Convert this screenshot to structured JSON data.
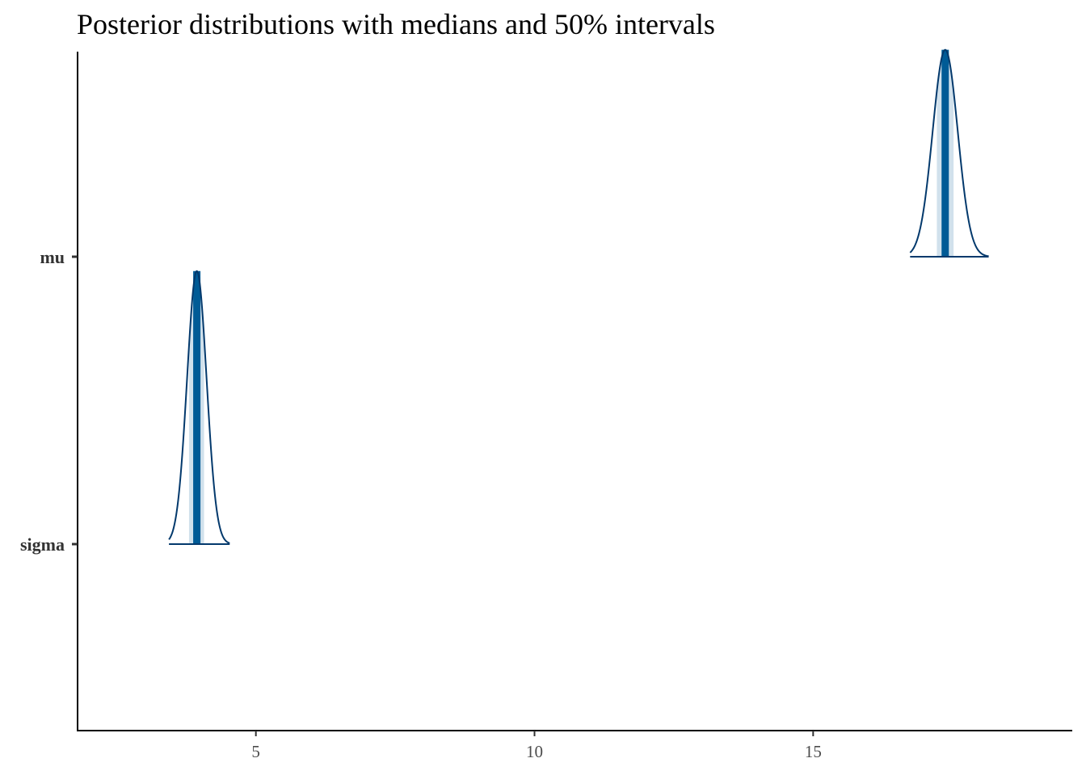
{
  "chart_data": {
    "type": "ridgeline-density",
    "title": "Posterior distributions with medians and 50% intervals",
    "xlabel": "",
    "ylabel": "",
    "xlim": [
      1.8,
      19.65
    ],
    "x_ticks": [
      5,
      10,
      15
    ],
    "grid": false,
    "legend": "none",
    "parameters": [
      {
        "name": "mu",
        "median": 17.37,
        "interval_50": [
          17.22,
          17.52
        ],
        "range": [
          16.74,
          18.15
        ],
        "sd": 0.225,
        "peak_height": 0.72
      },
      {
        "name": "sigma",
        "median": 3.94,
        "interval_50": [
          3.8,
          4.07
        ],
        "range": [
          3.44,
          4.53
        ],
        "sd": 0.175,
        "peak_height": 0.95
      }
    ],
    "colors": {
      "outline": "#03396c",
      "median_line": "#005b96",
      "interval_fill": "#d1e1ec",
      "axis": "#000000"
    }
  }
}
